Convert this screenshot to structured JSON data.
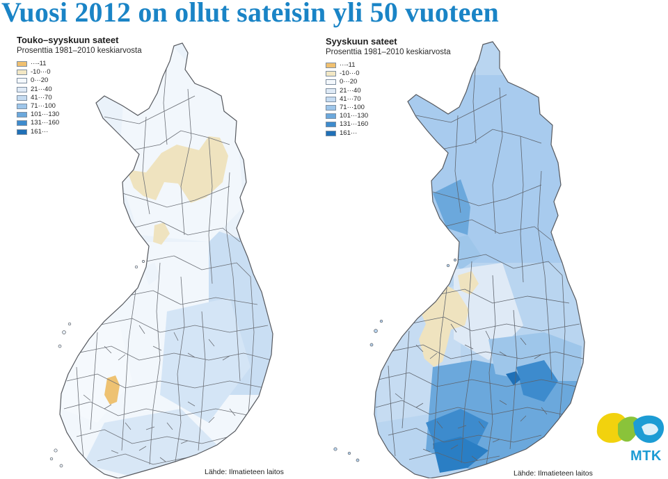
{
  "title": "Vuosi 2012 on ollut sateisin yli 50 vuoteen",
  "colors": {
    "title": "#1a84c6",
    "border": "#55585e",
    "classes": [
      "#f0c070",
      "#f2e7c4",
      "#f4f8fc",
      "#dfeaf6",
      "#c6dcf2",
      "#9ec6ea",
      "#6ba8dc",
      "#3d8bcd",
      "#1f70b7"
    ],
    "logo_yellow": "#f2d20e",
    "logo_green": "#8ac33a",
    "logo_blue": "#1d9cd4"
  },
  "legend": {
    "labels": [
      "···-11",
      "-10···0",
      "0···20",
      "21···40",
      "41···70",
      "71···100",
      "101···130",
      "131···160",
      "161···"
    ]
  },
  "maps": [
    {
      "title": "Touko–syyskuun sateet",
      "subtitle": "Prosenttia 1981–2010 keskiarvosta",
      "source": "Lähde: Ilmatieteen laitos",
      "dominant_class_order": [
        "0···20",
        "21···40",
        "41···70",
        "-10···0",
        "···-11"
      ]
    },
    {
      "title": "Syyskuun sateet",
      "subtitle": "Prosenttia 1981–2010 keskiarvosta",
      "source": "Lähde: Ilmatieteen laitos",
      "dominant_class_order": [
        "41···70",
        "71···100",
        "101···130",
        "131···160",
        "-10···0"
      ]
    }
  ],
  "logo": {
    "text": "MTK",
    "icon": "mtk-logo-icon"
  }
}
